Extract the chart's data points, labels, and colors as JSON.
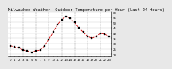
{
  "title": "Milwaukee Weather  Outdoor Temperature per Hour (Last 24 Hours)",
  "hours": [
    0,
    1,
    2,
    3,
    4,
    5,
    6,
    7,
    8,
    9,
    10,
    11,
    12,
    13,
    14,
    15,
    16,
    17,
    18,
    19,
    20,
    21,
    22,
    23
  ],
  "temps": [
    28,
    27,
    26,
    24,
    23,
    22,
    23,
    24,
    28,
    34,
    41,
    48,
    53,
    56,
    54,
    50,
    45,
    41,
    37,
    35,
    37,
    40,
    39,
    37
  ],
  "line_color": "#cc0000",
  "marker_color": "#000000",
  "bg_color": "#e8e8e8",
  "plot_bg": "#ffffff",
  "ylim_min": 18,
  "ylim_max": 60,
  "yticks": [
    20,
    25,
    30,
    35,
    40,
    45,
    50,
    55,
    60
  ],
  "grid_color": "#888888",
  "title_fontsize": 3.8,
  "tick_fontsize": 2.8,
  "line_width": 0.6,
  "marker_size": 1.6
}
